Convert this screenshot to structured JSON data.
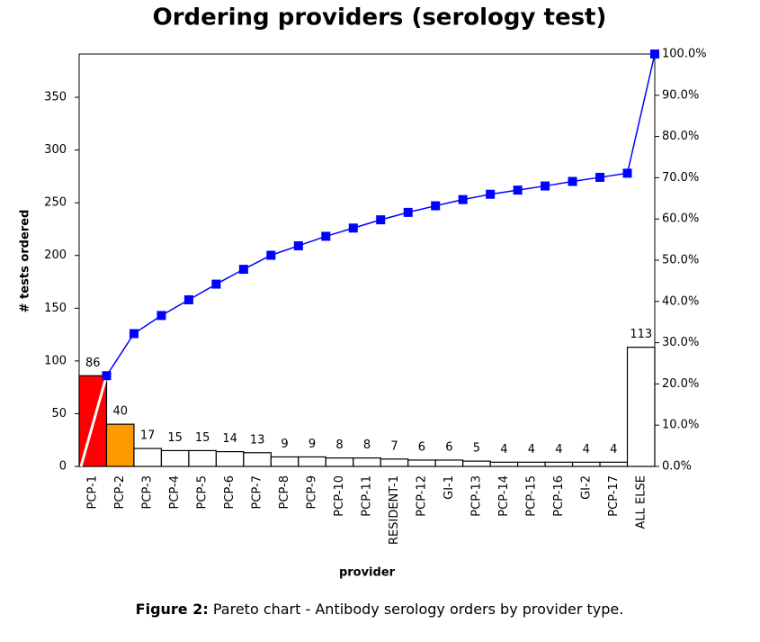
{
  "chart_data": {
    "type": "bar",
    "title": "Ordering providers (serology test)",
    "x_label": "provider",
    "y_label": "# tests ordered",
    "categories": [
      "PCP-1",
      "PCP-2",
      "PCP-3",
      "PCP-4",
      "PCP-5",
      "PCP-6",
      "PCP-7",
      "PCP-8",
      "PCP-9",
      "PCP-10",
      "PCP-11",
      "RESIDENT-1",
      "PCP-12",
      "GI-1",
      "PCP-13",
      "PCP-14",
      "PCP-15",
      "PCP-16",
      "GI-2",
      "PCP-17",
      "ALL ELSE"
    ],
    "values": [
      86,
      40,
      17,
      15,
      15,
      14,
      13,
      9,
      9,
      8,
      8,
      7,
      6,
      6,
      5,
      4,
      4,
      4,
      4,
      4,
      113
    ],
    "colors": [
      "#ff0000",
      "#ff9900",
      "#ffffff",
      "#ffffff",
      "#ffffff",
      "#ffffff",
      "#ffffff",
      "#ffffff",
      "#ffffff",
      "#ffffff",
      "#ffffff",
      "#ffffff",
      "#ffffff",
      "#ffffff",
      "#ffffff",
      "#ffffff",
      "#ffffff",
      "#ffffff",
      "#ffffff",
      "#ffffff",
      "#ffffff"
    ],
    "ylim": [
      0,
      391
    ],
    "yticks": [
      0,
      50,
      100,
      150,
      200,
      250,
      300,
      350
    ],
    "y2lim": [
      0,
      100
    ],
    "y2ticks": [
      {
        "value": 0,
        "label": "0.0%"
      },
      {
        "value": 10,
        "label": "10.0%"
      },
      {
        "value": 20,
        "label": "20.0%"
      },
      {
        "value": 30,
        "label": "30.0%"
      },
      {
        "value": 40,
        "label": "40.0%"
      },
      {
        "value": 50,
        "label": "50.0%"
      },
      {
        "value": 60,
        "label": "60.0%"
      },
      {
        "value": 70,
        "label": "70.0%"
      },
      {
        "value": 80,
        "label": "80.0%"
      },
      {
        "value": 90,
        "label": "90.0%"
      },
      {
        "value": 100,
        "label": "100.0%"
      }
    ],
    "cumulative": {
      "type": "line",
      "axis": "y2",
      "color": "#0000ff",
      "values": [
        22.0,
        32.2,
        36.6,
        40.4,
        44.2,
        47.8,
        51.2,
        53.5,
        55.8,
        57.8,
        59.8,
        61.6,
        63.2,
        64.7,
        66.0,
        67.0,
        68.0,
        69.1,
        70.1,
        71.1,
        100
      ]
    },
    "caption_label": "Figure 2:",
    "caption_text": "Pareto chart - Antibody serology orders by provider type."
  }
}
